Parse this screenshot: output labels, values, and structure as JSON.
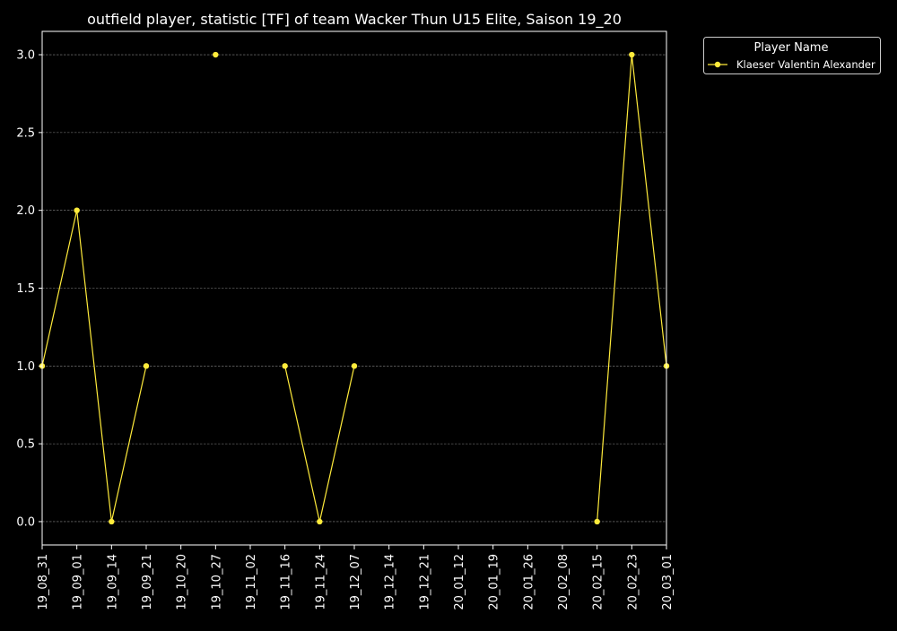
{
  "chart_data": {
    "type": "line",
    "title": "outfield player, statistic [TF] of team Wacker Thun U15 Elite, Saison 19_20",
    "xlabel": "",
    "ylabel": "",
    "categories": [
      "19_08_31",
      "19_09_01",
      "19_09_14",
      "19_09_21",
      "19_10_20",
      "19_10_27",
      "19_11_02",
      "19_11_16",
      "19_11_24",
      "19_12_07",
      "19_12_14",
      "19_12_21",
      "20_01_12",
      "20_01_19",
      "20_01_26",
      "20_02_08",
      "20_02_15",
      "20_02_23",
      "20_03_01"
    ],
    "yticks": [
      "0.0",
      "0.5",
      "1.0",
      "1.5",
      "2.0",
      "2.5",
      "3.0"
    ],
    "ylim": [
      -0.15,
      3.15
    ],
    "grid": true,
    "legend": {
      "title": "Player Name",
      "placement": "outside-top-right"
    },
    "series": [
      {
        "name": "Klaeser Valentin Alexander",
        "color": "#ffeb3b",
        "values": [
          1,
          2,
          0,
          1,
          null,
          3,
          null,
          1,
          0,
          1,
          null,
          null,
          null,
          null,
          null,
          null,
          0,
          3,
          1
        ]
      }
    ]
  }
}
